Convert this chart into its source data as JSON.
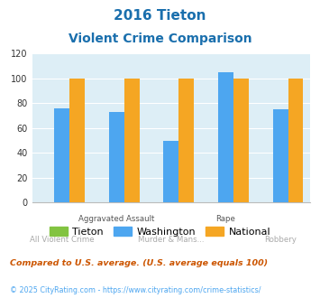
{
  "title_line1": "2016 Tieton",
  "title_line2": "Violent Crime Comparison",
  "categories": [
    "All Violent Crime",
    "Aggravated Assault",
    "Murder & Mans...",
    "Rape",
    "Robbery"
  ],
  "cat_labels_row1": [
    "",
    "Aggravated Assault",
    "",
    "Rape",
    ""
  ],
  "cat_labels_row2": [
    "All Violent Crime",
    "",
    "Murder & Mans...",
    "",
    "Robbery"
  ],
  "tieton": [
    0,
    0,
    0,
    0,
    0
  ],
  "washington": [
    76,
    73,
    50,
    105,
    75
  ],
  "national": [
    100,
    100,
    100,
    100,
    100
  ],
  "tieton_color": "#82c341",
  "washington_color": "#4da6f0",
  "national_color": "#f5a623",
  "bg_color": "#ddeef6",
  "ylim": [
    0,
    120
  ],
  "yticks": [
    0,
    20,
    40,
    60,
    80,
    100,
    120
  ],
  "title_color": "#1a6fad",
  "footnote1": "Compared to U.S. average. (U.S. average equals 100)",
  "footnote2": "© 2025 CityRating.com - https://www.cityrating.com/crime-statistics/",
  "footnote1_color": "#cc5500",
  "footnote2_color": "#4da6f0",
  "legend_labels": [
    "Tieton",
    "Washington",
    "National"
  ],
  "bar_width": 0.28
}
